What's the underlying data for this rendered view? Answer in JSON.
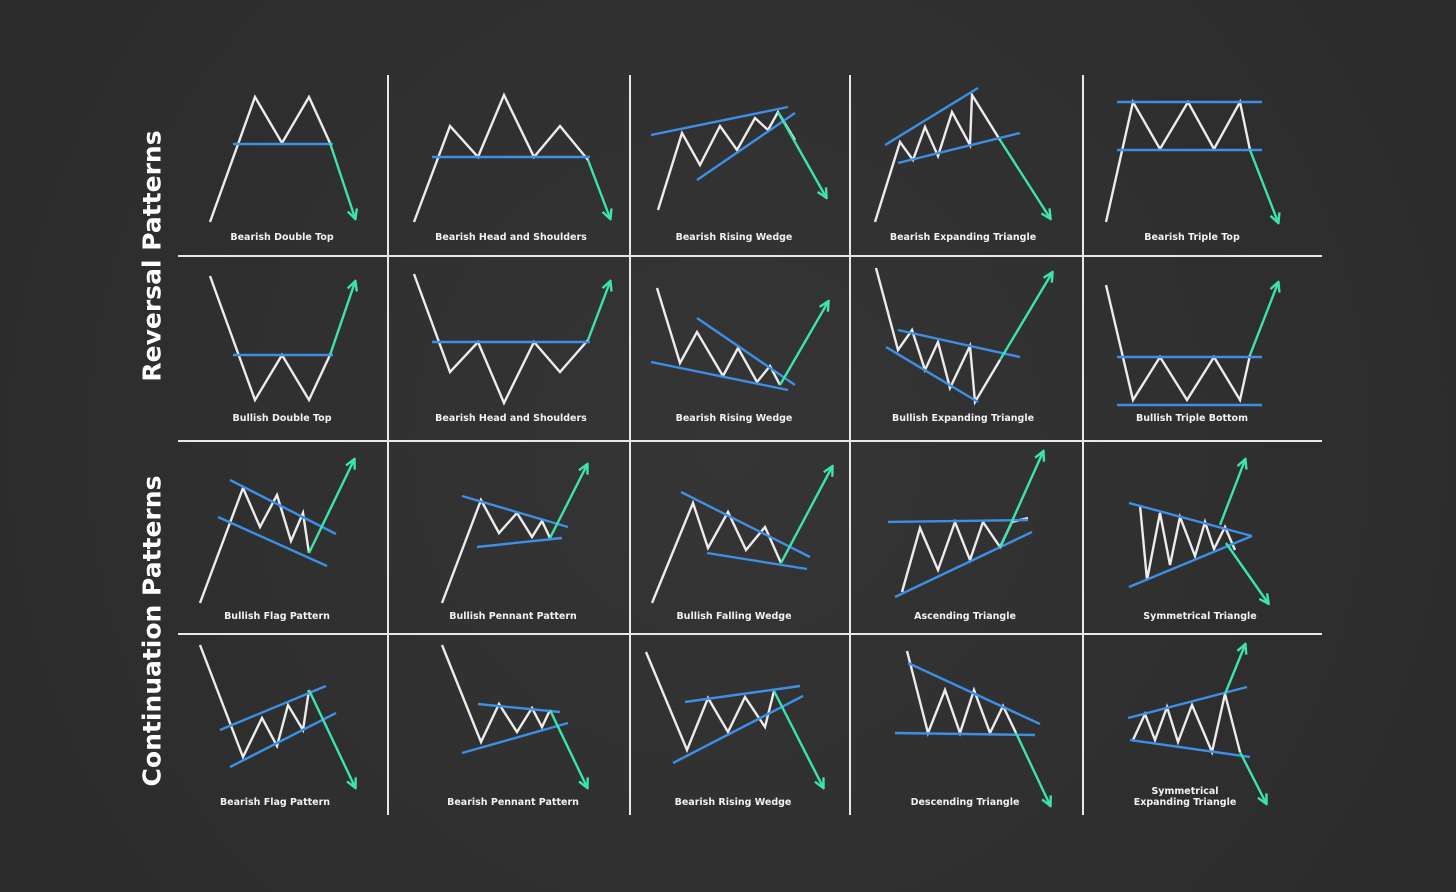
{
  "sections": [
    {
      "title": "Reversal Patterns"
    },
    {
      "title": "Continuation Patterns"
    }
  ],
  "patterns": [
    {
      "label": "Bearish Double Top"
    },
    {
      "label": "Bearish Head and Shoulders"
    },
    {
      "label": "Bearish Rising Wedge"
    },
    {
      "label": "Bearish Expanding Triangle"
    },
    {
      "label": "Bearish Triple Top"
    },
    {
      "label": "Bullish Double Top"
    },
    {
      "label": "Bearish Head and Shoulders"
    },
    {
      "label": "Bearish Rising Wedge"
    },
    {
      "label": "Bullish Expanding Triangle"
    },
    {
      "label": "Bullish Triple Bottom"
    },
    {
      "label": "Bullish Flag Pattern"
    },
    {
      "label": "Bullish Pennant Pattern"
    },
    {
      "label": "Bullish Falling Wedge"
    },
    {
      "label": "Ascending Triangle"
    },
    {
      "label": "Symmetrical Triangle"
    },
    {
      "label": "Bearish Flag Pattern"
    },
    {
      "label": "Bearish Pennant Pattern"
    },
    {
      "label": "Bearish Rising Wedge"
    },
    {
      "label": "Descending Triangle"
    },
    {
      "label": "Symmetrical Expanding Triangle"
    }
  ]
}
